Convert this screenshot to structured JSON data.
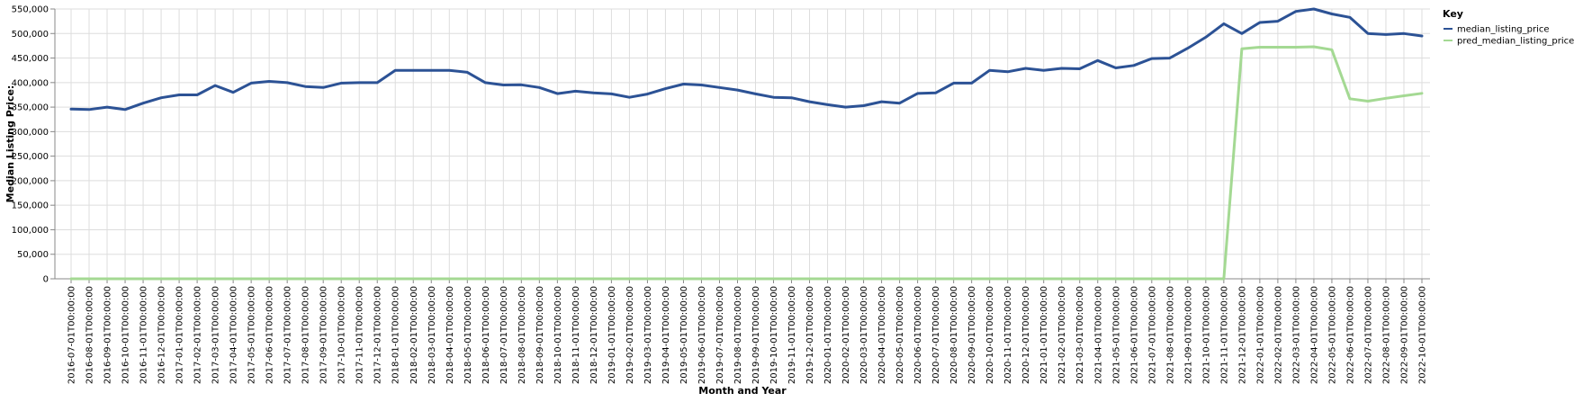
{
  "chart_data": {
    "type": "line",
    "title": "",
    "xlabel": "Month and Year",
    "ylabel": "Median Listing Price:",
    "ylim": [
      0,
      550000
    ],
    "yticks": [
      0,
      50000,
      100000,
      150000,
      200000,
      250000,
      300000,
      350000,
      400000,
      450000,
      500000,
      550000
    ],
    "ytick_labels": [
      "0",
      "50,000",
      "100,000",
      "150,000",
      "200,000",
      "250,000",
      "300,000",
      "350,000",
      "400,000",
      "450,000",
      "500,000",
      "550,000"
    ],
    "grid": true,
    "legend": {
      "title": "Key",
      "placement": "top-right"
    },
    "categories": [
      "2016-07-01T00:00:00",
      "2016-08-01T00:00:00",
      "2016-09-01T00:00:00",
      "2016-10-01T00:00:00",
      "2016-11-01T00:00:00",
      "2016-12-01T00:00:00",
      "2017-01-01T00:00:00",
      "2017-02-01T00:00:00",
      "2017-03-01T00:00:00",
      "2017-04-01T00:00:00",
      "2017-05-01T00:00:00",
      "2017-06-01T00:00:00",
      "2017-07-01T00:00:00",
      "2017-08-01T00:00:00",
      "2017-09-01T00:00:00",
      "2017-10-01T00:00:00",
      "2017-11-01T00:00:00",
      "2017-12-01T00:00:00",
      "2018-01-01T00:00:00",
      "2018-02-01T00:00:00",
      "2018-03-01T00:00:00",
      "2018-04-01T00:00:00",
      "2018-05-01T00:00:00",
      "2018-06-01T00:00:00",
      "2018-07-01T00:00:00",
      "2018-08-01T00:00:00",
      "2018-09-01T00:00:00",
      "2018-10-01T00:00:00",
      "2018-11-01T00:00:00",
      "2018-12-01T00:00:00",
      "2019-01-01T00:00:00",
      "2019-02-01T00:00:00",
      "2019-03-01T00:00:00",
      "2019-04-01T00:00:00",
      "2019-05-01T00:00:00",
      "2019-06-01T00:00:00",
      "2019-07-01T00:00:00",
      "2019-08-01T00:00:00",
      "2019-09-01T00:00:00",
      "2019-10-01T00:00:00",
      "2019-11-01T00:00:00",
      "2019-12-01T00:00:00",
      "2020-01-01T00:00:00",
      "2020-02-01T00:00:00",
      "2020-03-01T00:00:00",
      "2020-04-01T00:00:00",
      "2020-05-01T00:00:00",
      "2020-06-01T00:00:00",
      "2020-07-01T00:00:00",
      "2020-08-01T00:00:00",
      "2020-09-01T00:00:00",
      "2020-10-01T00:00:00",
      "2020-11-01T00:00:00",
      "2020-12-01T00:00:00",
      "2021-01-01T00:00:00",
      "2021-02-01T00:00:00",
      "2021-03-01T00:00:00",
      "2021-04-01T00:00:00",
      "2021-05-01T00:00:00",
      "2021-06-01T00:00:00",
      "2021-07-01T00:00:00",
      "2021-08-01T00:00:00",
      "2021-09-01T00:00:00",
      "2021-10-01T00:00:00",
      "2021-11-01T00:00:00",
      "2021-12-01T00:00:00",
      "2022-01-01T00:00:00",
      "2022-02-01T00:00:00",
      "2022-03-01T00:00:00",
      "2022-04-01T00:00:00",
      "2022-05-01T00:00:00",
      "2022-06-01T00:00:00",
      "2022-07-01T00:00:00",
      "2022-08-01T00:00:00",
      "2022-09-01T00:00:00",
      "2022-10-01T00:00:00"
    ],
    "series": [
      {
        "name": "median_listing_price",
        "color": "#2c5295",
        "values": [
          346000,
          345000,
          349900,
          345000,
          358000,
          369000,
          375000,
          375000,
          393900,
          380000,
          399000,
          402500,
          399900,
          392000,
          389900,
          399000,
          399900,
          399900,
          425000,
          425000,
          425000,
          425000,
          421000,
          399900,
          395000,
          395500,
          389900,
          377400,
          382500,
          379000,
          376900,
          369900,
          376600,
          387500,
          397000,
          395000,
          389900,
          384900,
          377000,
          370000,
          369000,
          361000,
          355000,
          350000,
          353000,
          361000,
          358000,
          377900,
          379000,
          399000,
          399000,
          425000,
          422000,
          429000,
          425000,
          429000,
          428000,
          445000,
          430000,
          434900,
          449000,
          449900,
          470000,
          492500,
          520000,
          499900,
          522500,
          525000,
          545000,
          550000,
          540000,
          533000,
          500000,
          498000,
          499900,
          495000
        ]
      },
      {
        "name": "pred_median_listing_price",
        "color": "#a4d993",
        "values": [
          0,
          0,
          0,
          0,
          0,
          0,
          0,
          0,
          0,
          0,
          0,
          0,
          0,
          0,
          0,
          0,
          0,
          0,
          0,
          0,
          0,
          0,
          0,
          0,
          0,
          0,
          0,
          0,
          0,
          0,
          0,
          0,
          0,
          0,
          0,
          0,
          0,
          0,
          0,
          0,
          0,
          0,
          0,
          0,
          0,
          0,
          0,
          0,
          0,
          0,
          0,
          0,
          0,
          0,
          0,
          0,
          0,
          0,
          0,
          0,
          0,
          0,
          0,
          0,
          0,
          469000,
          472000,
          472000,
          472000,
          473000,
          467000,
          367000,
          362000,
          368000,
          373000,
          378000
        ]
      }
    ]
  }
}
